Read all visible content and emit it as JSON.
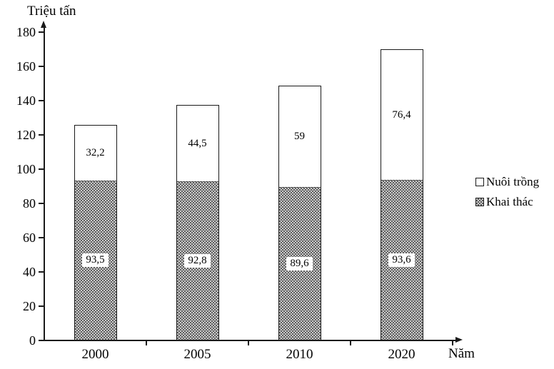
{
  "chart_data": {
    "type": "bar",
    "stacked": true,
    "y_axis_title": "Triệu tấn",
    "x_axis_title": "Năm",
    "categories": [
      "2000",
      "2005",
      "2010",
      "2020"
    ],
    "series": [
      {
        "name": "Khai thác",
        "values": [
          93.5,
          92.8,
          89.6,
          93.6
        ],
        "labels": [
          "93,5",
          "92,8",
          "89,6",
          "93,6"
        ],
        "fill": "hatch"
      },
      {
        "name": "Nuôi trồng",
        "values": [
          32.2,
          44.5,
          59,
          76.4
        ],
        "labels": [
          "32,2",
          "44,5",
          "59",
          "76,4"
        ],
        "fill": "white"
      }
    ],
    "ylim": [
      0,
      180
    ],
    "ytick_step": 20,
    "ytick_labels": [
      "0",
      "20",
      "40",
      "60",
      "80",
      "100",
      "120",
      "140",
      "160",
      "180"
    ],
    "legend_position": "right",
    "legend": [
      "Nuôi trồng",
      "Khai thác"
    ],
    "grid": false,
    "colors": {
      "axis": "#1a1a1a",
      "bar_border": "#1a1a1a",
      "hatch_dark": "#5e5e5e",
      "hatch_light": "#cbcbcb",
      "text": "#000000"
    }
  }
}
